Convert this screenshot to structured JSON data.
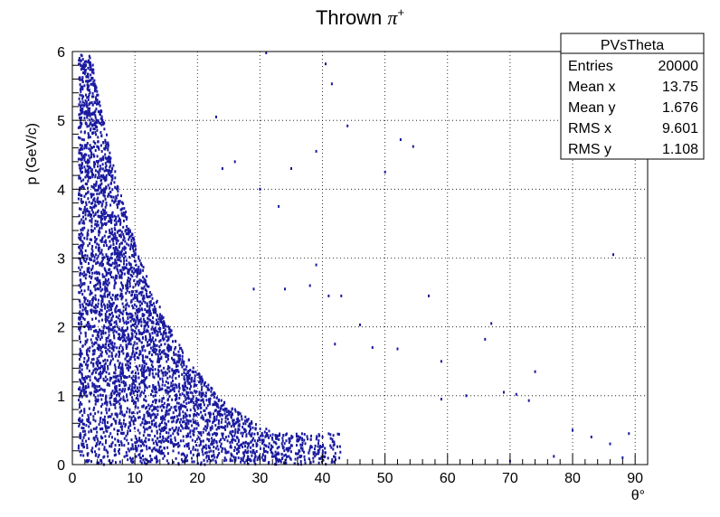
{
  "chart_data": {
    "type": "scatter",
    "title": "Thrown π⁺",
    "title_main": "Thrown ",
    "title_symbol": "π",
    "title_sup": "+",
    "xlabel": "θ°",
    "ylabel": "p (GeV/c)",
    "xlim": [
      0,
      92
    ],
    "ylim": [
      0,
      6
    ],
    "x_ticks": [
      "0",
      "10",
      "20",
      "30",
      "40",
      "50",
      "60",
      "70",
      "80",
      "90"
    ],
    "y_ticks": [
      "0",
      "1",
      "2",
      "3",
      "4",
      "5",
      "6"
    ],
    "grid": true,
    "marker_color": "#1a1aa0",
    "outliers": [
      [
        31,
        5.98
      ],
      [
        40.5,
        5.82
      ],
      [
        41.5,
        5.53
      ],
      [
        44,
        4.92
      ],
      [
        52.5,
        4.72
      ],
      [
        54.5,
        4.62
      ],
      [
        50,
        4.25
      ],
      [
        39,
        4.55
      ],
      [
        35,
        4.3
      ],
      [
        86.5,
        3.05
      ],
      [
        39,
        2.9
      ],
      [
        38,
        2.6
      ],
      [
        41,
        2.45
      ],
      [
        43,
        2.45
      ],
      [
        57,
        2.45
      ],
      [
        46,
        2.03
      ],
      [
        67,
        2.05
      ],
      [
        66,
        1.82
      ],
      [
        42,
        1.75
      ],
      [
        48,
        1.7
      ],
      [
        52,
        1.68
      ],
      [
        59,
        1.5
      ],
      [
        74,
        1.35
      ],
      [
        69,
        1.05
      ],
      [
        71,
        1.02
      ],
      [
        63,
        1.0
      ],
      [
        59,
        0.95
      ],
      [
        73,
        0.93
      ],
      [
        80,
        0.5
      ],
      [
        83,
        0.4
      ],
      [
        86,
        0.3
      ],
      [
        89,
        0.45
      ],
      [
        88,
        0.1
      ],
      [
        77,
        0.12
      ],
      [
        70,
        0.05
      ],
      [
        30,
        4.0
      ],
      [
        26,
        4.4
      ],
      [
        24,
        4.3
      ],
      [
        23,
        5.05
      ],
      [
        33,
        3.75
      ],
      [
        34,
        2.55
      ],
      [
        29,
        2.55
      ]
    ],
    "stats": {
      "name": "PVsTheta",
      "rows": [
        {
          "label": "Entries",
          "value": "20000"
        },
        {
          "label": "Mean x",
          "value": "13.75"
        },
        {
          "label": "Mean y",
          "value": "1.676"
        },
        {
          "label": "RMS x",
          "value": "9.601"
        },
        {
          "label": "RMS y",
          "value": "1.108"
        }
      ]
    }
  }
}
